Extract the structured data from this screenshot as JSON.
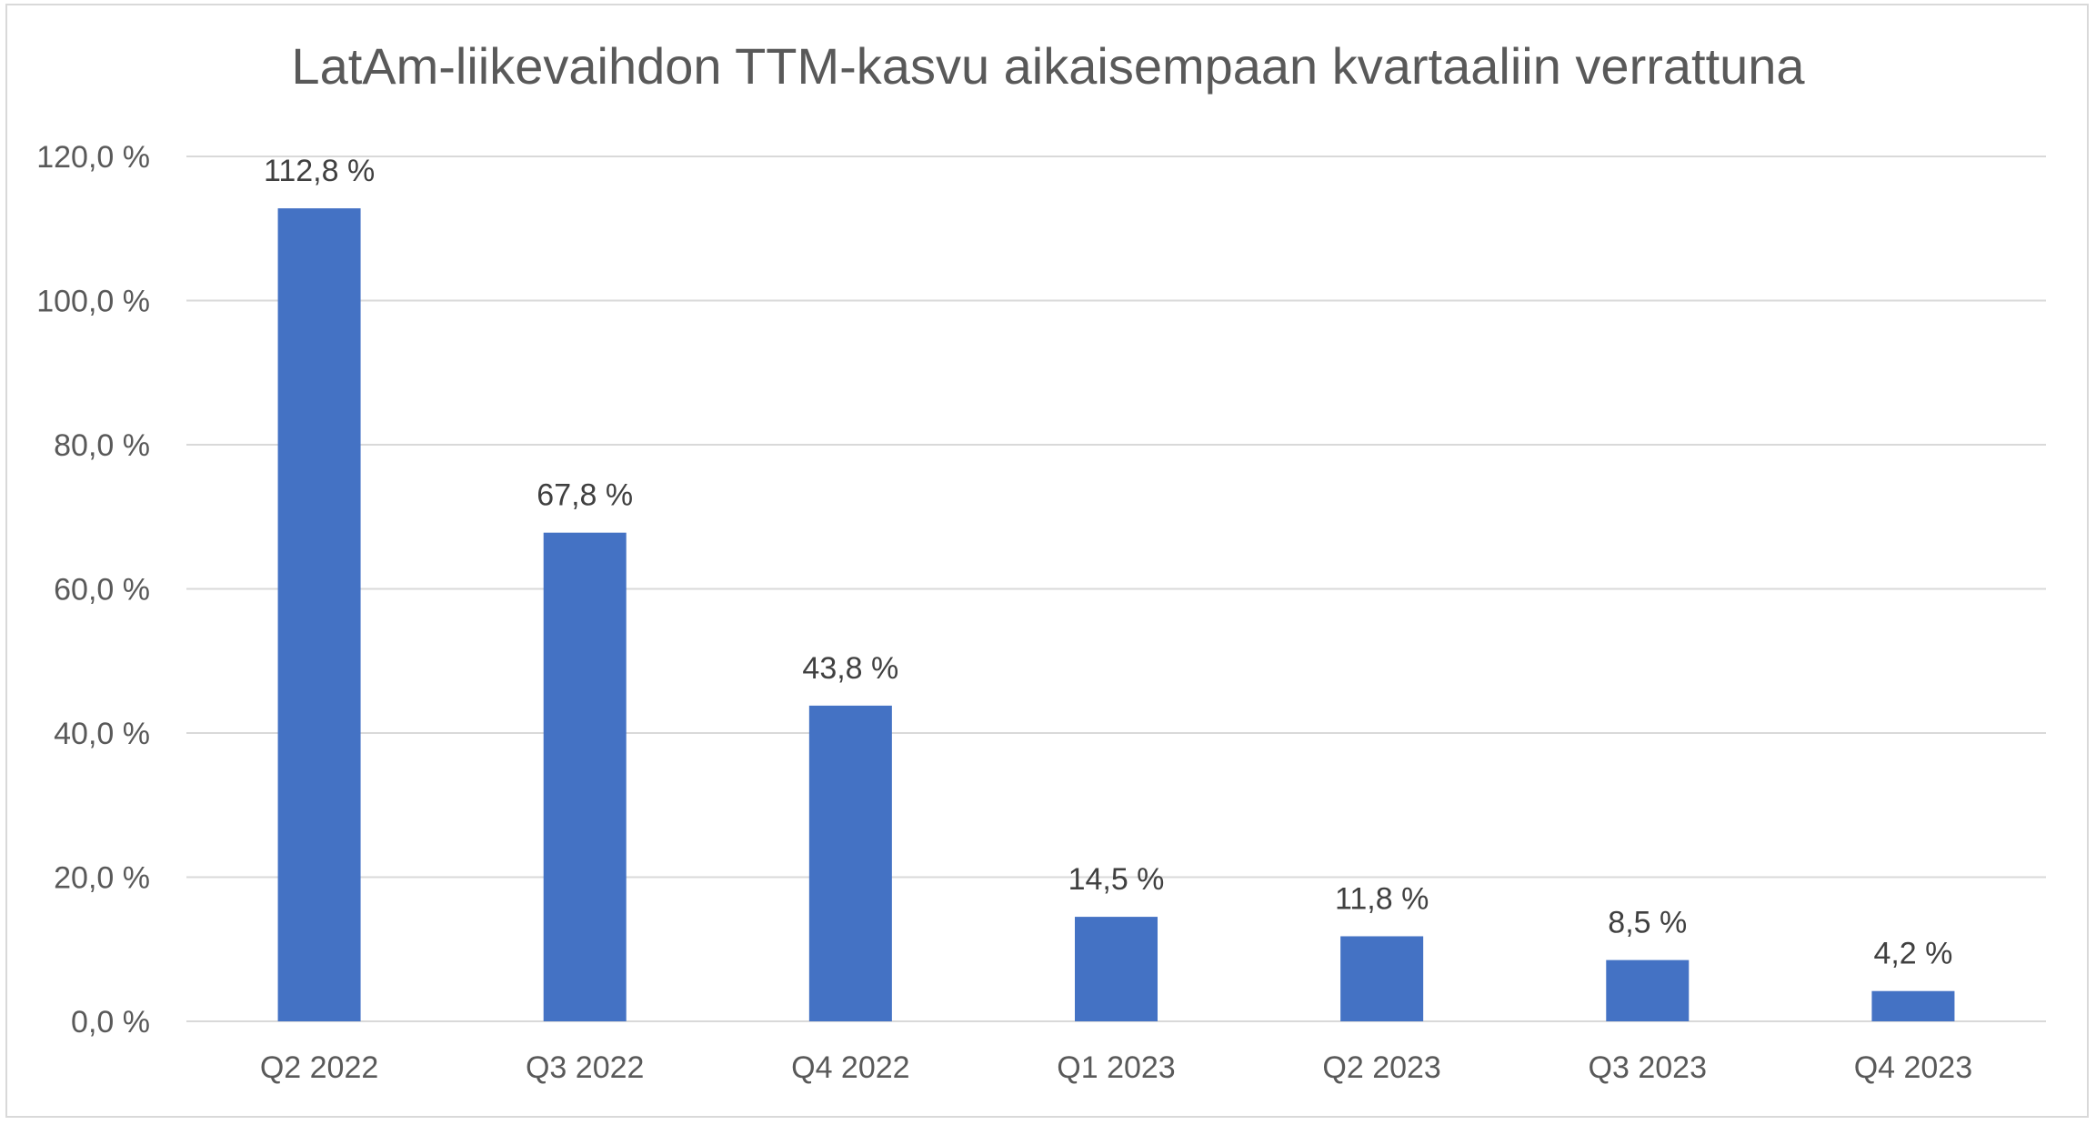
{
  "chart_data": {
    "type": "bar",
    "title": "LatAm-liikevaihdon TTM-kasvu aikaisempaan kvartaaliin verrattuna",
    "categories": [
      "Q2 2022",
      "Q3 2022",
      "Q4 2022",
      "Q1 2023",
      "Q2 2023",
      "Q3 2023",
      "Q4 2023"
    ],
    "values": [
      112.8,
      67.8,
      43.8,
      14.5,
      11.8,
      8.5,
      4.2
    ],
    "data_labels": [
      "112,8 %",
      "67,8 %",
      "43,8 %",
      "14,5 %",
      "11,8 %",
      "8,5 %",
      "4,2 %"
    ],
    "ylim": [
      0,
      120
    ],
    "yticks": [
      0,
      20,
      40,
      60,
      80,
      100,
      120
    ],
    "ytick_labels": [
      "0,0 %",
      "20,0 %",
      "40,0 %",
      "60,0 %",
      "80,0 %",
      "100,0 %",
      "120,0 %"
    ],
    "xlabel": "",
    "ylabel": "",
    "grid": true,
    "legend": false,
    "bar_color": "#4472C4",
    "grid_color": "#d9d9d9"
  }
}
